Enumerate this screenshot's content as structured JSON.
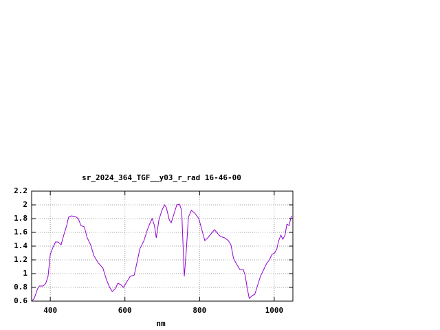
{
  "chart_data": {
    "type": "line",
    "title": "sr_2024_364_TGF__y03_r_rad 16-46-00",
    "x_label": "nm",
    "x": [
      350,
      357,
      366,
      371,
      381,
      388,
      394,
      400,
      407,
      414,
      421,
      429,
      436,
      444,
      449,
      456,
      467,
      475,
      482,
      491,
      499,
      508,
      517,
      528,
      541,
      550,
      559,
      566,
      574,
      581,
      589,
      596,
      605,
      614,
      625,
      633,
      640,
      651,
      659,
      666,
      673,
      679,
      684,
      691,
      699,
      706,
      711,
      719,
      724,
      732,
      739,
      746,
      752,
      756,
      759,
      765,
      770,
      778,
      787,
      798,
      807,
      814,
      822,
      831,
      840,
      849,
      856,
      867,
      877,
      884,
      891,
      899,
      908,
      917,
      922,
      928,
      933,
      941,
      948,
      955,
      963,
      972,
      979,
      987,
      994,
      1001,
      1007,
      1012,
      1018,
      1023,
      1029,
      1034,
      1040,
      1045,
      1047
    ],
    "series": [
      {
        "color": "#9400d3",
        "values": [
          0.6,
          0.64,
          0.78,
          0.82,
          0.82,
          0.86,
          0.96,
          1.28,
          1.38,
          1.46,
          1.46,
          1.42,
          1.56,
          1.7,
          1.82,
          1.84,
          1.83,
          1.8,
          1.7,
          1.68,
          1.52,
          1.42,
          1.26,
          1.16,
          1.08,
          0.92,
          0.8,
          0.74,
          0.78,
          0.86,
          0.84,
          0.8,
          0.88,
          0.96,
          0.98,
          1.18,
          1.36,
          1.48,
          1.62,
          1.72,
          1.8,
          1.7,
          1.52,
          1.78,
          1.92,
          2.0,
          1.96,
          1.78,
          1.74,
          1.88,
          2.0,
          2.01,
          1.92,
          1.38,
          0.96,
          1.38,
          1.82,
          1.92,
          1.88,
          1.8,
          1.62,
          1.48,
          1.52,
          1.58,
          1.64,
          1.58,
          1.54,
          1.52,
          1.48,
          1.42,
          1.22,
          1.14,
          1.06,
          1.06,
          0.98,
          0.78,
          0.64,
          0.68,
          0.7,
          0.82,
          0.96,
          1.06,
          1.14,
          1.2,
          1.28,
          1.3,
          1.36,
          1.48,
          1.56,
          1.5,
          1.56,
          1.72,
          1.7,
          1.82,
          1.84
        ]
      }
    ],
    "xlim": [
      350,
      1050
    ],
    "xticks": [
      400,
      600,
      800,
      1000
    ],
    "ylim": [
      0.6,
      2.2
    ],
    "yticks": [
      0.6,
      0.8,
      1,
      1.2,
      1.4,
      1.6,
      1.8,
      2,
      2.2
    ],
    "grid": true
  }
}
